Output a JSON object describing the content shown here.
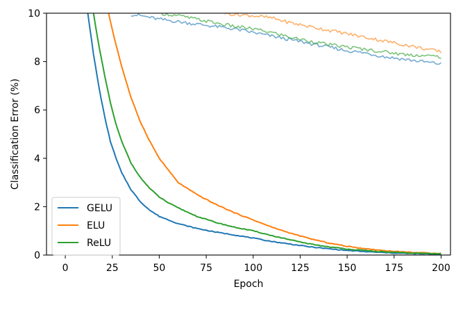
{
  "chart_data": {
    "type": "line",
    "title": "",
    "xlabel": "Epoch",
    "ylabel": "Classification Error (%)",
    "xlim": [
      -10,
      205
    ],
    "ylim": [
      0,
      10
    ],
    "xticks": [
      0,
      25,
      50,
      75,
      100,
      125,
      150,
      175,
      200
    ],
    "yticks": [
      0,
      2,
      4,
      6,
      8,
      10
    ],
    "legend_position": "lower-left",
    "series": [
      {
        "name": "GELU",
        "color": "#1f77b4",
        "kind": "train",
        "x": [
          12,
          15,
          18,
          21,
          24,
          27,
          30,
          35,
          40,
          45,
          50,
          55,
          60,
          70,
          80,
          90,
          100,
          110,
          120,
          130,
          140,
          150,
          160,
          170,
          180,
          190,
          200
        ],
        "y": [
          10.0,
          8.3,
          6.9,
          5.7,
          4.7,
          4.0,
          3.4,
          2.7,
          2.2,
          1.85,
          1.6,
          1.45,
          1.3,
          1.1,
          0.95,
          0.83,
          0.7,
          0.56,
          0.45,
          0.34,
          0.26,
          0.19,
          0.14,
          0.1,
          0.07,
          0.05,
          0.04
        ]
      },
      {
        "name": "GELU",
        "color": "#1f77b4",
        "kind": "test",
        "x": [
          35,
          40,
          50,
          60,
          70,
          80,
          90,
          100,
          110,
          120,
          130,
          140,
          150,
          160,
          170,
          180,
          190,
          200
        ],
        "y": [
          9.95,
          9.9,
          9.75,
          9.65,
          9.55,
          9.45,
          9.35,
          9.2,
          9.05,
          8.9,
          8.75,
          8.6,
          8.45,
          8.35,
          8.2,
          8.1,
          8.0,
          7.9
        ]
      },
      {
        "name": "ELU",
        "color": "#ff7f0e",
        "kind": "train",
        "x": [
          23,
          26,
          30,
          35,
          40,
          45,
          50,
          55,
          60,
          70,
          80,
          90,
          100,
          110,
          120,
          130,
          140,
          150,
          160,
          170,
          180,
          190,
          200
        ],
        "y": [
          10.0,
          9.0,
          7.8,
          6.5,
          5.5,
          4.7,
          4.0,
          3.5,
          3.0,
          2.5,
          2.1,
          1.75,
          1.45,
          1.15,
          0.9,
          0.68,
          0.5,
          0.36,
          0.26,
          0.18,
          0.13,
          0.09,
          0.07
        ]
      },
      {
        "name": "ELU",
        "color": "#ff7f0e",
        "kind": "test",
        "x": [
          85,
          90,
          100,
          110,
          120,
          130,
          140,
          150,
          160,
          170,
          180,
          190,
          200
        ],
        "y": [
          10.0,
          9.95,
          9.9,
          9.8,
          9.6,
          9.45,
          9.3,
          9.15,
          9.0,
          8.85,
          8.7,
          8.55,
          8.4
        ]
      },
      {
        "name": "ReLU",
        "color": "#2ca02c",
        "kind": "train",
        "x": [
          15,
          18,
          21,
          24,
          27,
          30,
          35,
          40,
          45,
          50,
          55,
          60,
          70,
          80,
          90,
          100,
          110,
          120,
          130,
          140,
          150,
          160,
          170,
          180,
          190,
          200
        ],
        "y": [
          10.0,
          8.6,
          7.4,
          6.3,
          5.4,
          4.7,
          3.8,
          3.2,
          2.75,
          2.4,
          2.15,
          1.95,
          1.6,
          1.35,
          1.15,
          1.0,
          0.8,
          0.62,
          0.46,
          0.34,
          0.25,
          0.18,
          0.13,
          0.09,
          0.07,
          0.05
        ]
      },
      {
        "name": "ReLU",
        "color": "#2ca02c",
        "kind": "test",
        "x": [
          50,
          55,
          60,
          70,
          80,
          90,
          100,
          110,
          120,
          130,
          140,
          150,
          160,
          170,
          180,
          190,
          200
        ],
        "y": [
          10.0,
          9.95,
          9.9,
          9.75,
          9.6,
          9.45,
          9.35,
          9.2,
          9.0,
          8.85,
          8.7,
          8.6,
          8.5,
          8.4,
          8.3,
          8.25,
          8.2
        ]
      }
    ],
    "legend": [
      "GELU",
      "ELU",
      "ReLU"
    ]
  }
}
